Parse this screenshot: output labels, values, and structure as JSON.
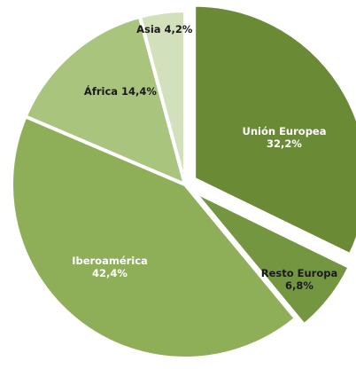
{
  "chart_data": {
    "type": "pie",
    "title": "",
    "start_angle_deg": 0,
    "direction": "clockwise",
    "slices": [
      {
        "name": "Unión Europea",
        "display_name": "Unión Europea",
        "value": 32.2,
        "label": "32,2%",
        "color": "#6b8a35",
        "text_color": "#ffffff",
        "exploded": true
      },
      {
        "name": "Resto Europa",
        "display_name": "Resto Europa",
        "value": 6.8,
        "label": "6,8%",
        "color": "#759641",
        "text_color": "#1a1a1a",
        "exploded": true
      },
      {
        "name": "Iberoamérica",
        "display_name": "Iberoamérica",
        "value": 42.4,
        "label": "42,4%",
        "color": "#8fae58",
        "text_color": "#ffffff",
        "exploded": false
      },
      {
        "name": "África",
        "display_name": "África",
        "value": 14.4,
        "label": "14,4%",
        "color": "#a9c47c",
        "text_color": "#1a1a1a",
        "exploded": false
      },
      {
        "name": "Asia",
        "display_name": "Asia",
        "value": 4.2,
        "label": "4,2%",
        "color": "#d2e0bc",
        "text_color": "#1a1a1a",
        "exploded": false
      }
    ]
  }
}
